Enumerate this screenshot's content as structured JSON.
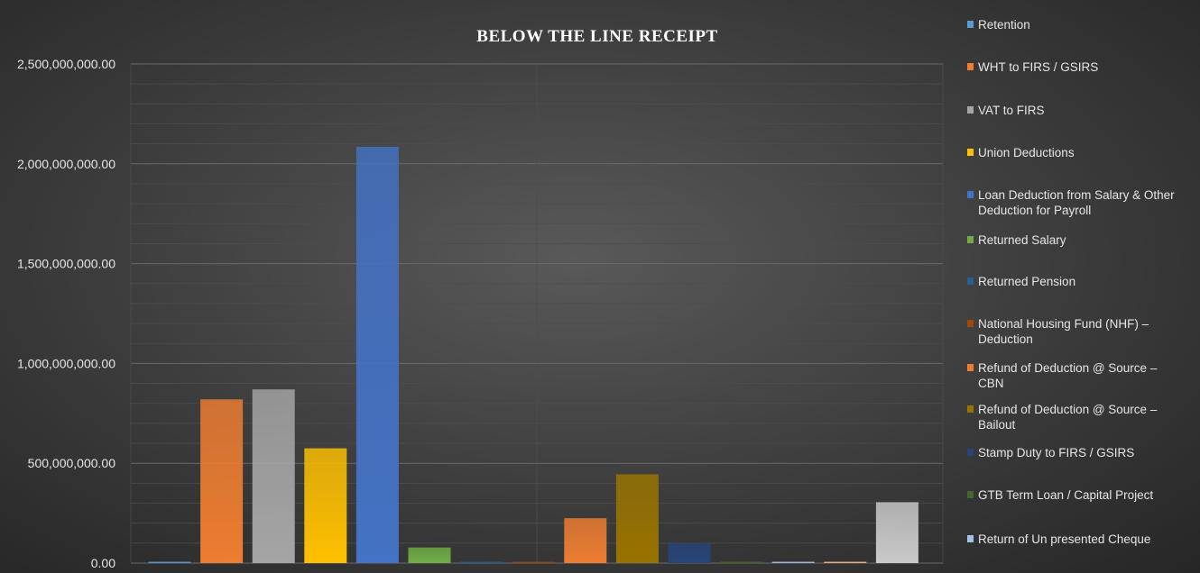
{
  "chart_data": {
    "type": "bar",
    "title": "BELOW THE LINE RECEIPT",
    "xlabel": "",
    "ylabel": "",
    "ylim": [
      0,
      2500000000
    ],
    "y_ticks": [
      "0.00",
      "500,000,000.00",
      "1,000,000,000.00",
      "1,500,000,000.00",
      "2,000,000,000.00",
      "2,500,000,000.00"
    ],
    "grid": true,
    "legend_position": "right",
    "categories": [
      ""
    ],
    "series": [
      {
        "name": "Retention",
        "color": "#5b9bd5",
        "values": [
          5000000
        ]
      },
      {
        "name": "WHT to FIRS / GSIRS",
        "color": "#ed7d31",
        "values": [
          820000000
        ]
      },
      {
        "name": "VAT to FIRS",
        "color": "#a5a5a5",
        "values": [
          870000000
        ]
      },
      {
        "name": "Union Deductions",
        "color": "#ffc000",
        "values": [
          575000000
        ]
      },
      {
        "name": "Loan Deduction from Salary & Other Deduction for Payroll",
        "color": "#4472c4",
        "values": [
          2085000000
        ]
      },
      {
        "name": "Returned Salary",
        "color": "#70ad47",
        "values": [
          78000000
        ]
      },
      {
        "name": "Returned Pension",
        "color": "#255e91",
        "values": [
          2000000
        ]
      },
      {
        "name": "National Housing Fund (NHF) – Deduction",
        "color": "#9e480e",
        "values": [
          3000000
        ]
      },
      {
        "name": "Refund of Deduction @ Source – CBN",
        "color": "#ed7d31",
        "values": [
          225000000
        ]
      },
      {
        "name": "Refund of Deduction @ Source – Bailout",
        "color": "#997300",
        "values": [
          445000000
        ]
      },
      {
        "name": "Stamp Duty to FIRS / GSIRS",
        "color": "#264478",
        "values": [
          100000000
        ]
      },
      {
        "name": "GTB Term Loan / Capital Project",
        "color": "#43682b",
        "values": [
          0
        ]
      },
      {
        "name": "Return of Un presented Cheque",
        "color": "#9dc3e6",
        "values": [
          5000000
        ]
      },
      {
        "name": "",
        "color": "#f4b183",
        "values": [
          5000000
        ]
      },
      {
        "name": "",
        "color": "#c9c9c9",
        "values": [
          305000000
        ]
      }
    ]
  }
}
